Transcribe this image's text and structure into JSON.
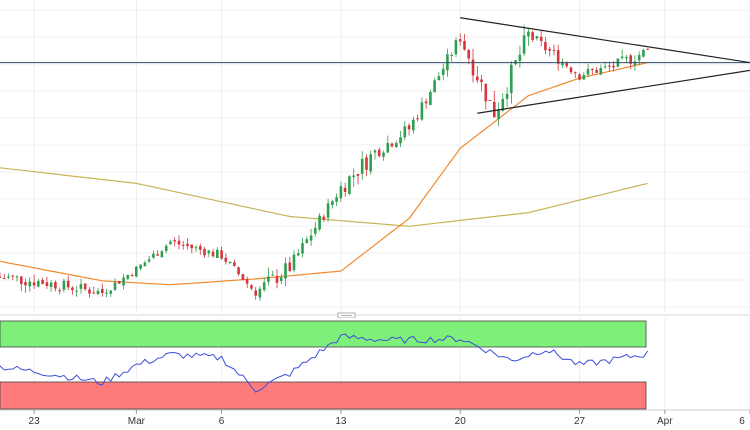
{
  "chart_data": {
    "type": "candlestick",
    "x_axis": {
      "labels": [
        {
          "label": "23",
          "date": "2023-02-23"
        },
        {
          "label": "Mar",
          "date": "2023-03-01"
        },
        {
          "label": "6",
          "date": "2023-03-06"
        },
        {
          "label": "13",
          "date": "2023-03-13"
        },
        {
          "label": "20",
          "date": "2023-03-20"
        },
        {
          "label": "27",
          "date": "2023-03-27"
        },
        {
          "label": "Apr",
          "date": "2023-04-01"
        },
        {
          "label": "6",
          "date": "2023-04-06"
        }
      ],
      "range": [
        "2023-02-21",
        "2023-04-06"
      ]
    },
    "price_panel": {
      "grid": true,
      "candles_up_color": "#2e9e4f",
      "candles_down_color": "#d5353c",
      "sma_fast_color": "#ef8a2f",
      "sma_slow_color": "#c9b458",
      "trendline_color": "#222222",
      "horizontal_line_color": "#2f4f6f",
      "candle_samples": [
        {
          "date": "2023-02-21",
          "o": 3.0,
          "h": 18.0,
          "l": -2.0,
          "c": 12.0
        },
        {
          "date": "2023-02-23",
          "o": 14.0,
          "h": 20.0,
          "l": 4.0,
          "c": 10.0
        },
        {
          "date": "2023-02-27",
          "o": 7.0,
          "h": 12.0,
          "l": 0.0,
          "c": 4.0
        },
        {
          "date": "2023-03-01",
          "o": 10.0,
          "h": 18.0,
          "l": 6.0,
          "c": 16.0
        },
        {
          "date": "2023-03-03",
          "o": 22.0,
          "h": 34.0,
          "l": 20.0,
          "c": 30.0
        },
        {
          "date": "2023-03-06",
          "o": 28.0,
          "h": 32.0,
          "l": 20.0,
          "c": 23.0
        },
        {
          "date": "2023-03-08",
          "o": 22.0,
          "h": 24.0,
          "l": 0.0,
          "c": 4.0
        },
        {
          "date": "2023-03-10",
          "o": 5.0,
          "h": 20.0,
          "l": 2.0,
          "c": 17.0
        },
        {
          "date": "2023-03-13",
          "o": 38.0,
          "h": 62.0,
          "l": 36.0,
          "c": 58.0
        },
        {
          "date": "2023-03-15",
          "o": 72.0,
          "h": 80.0,
          "l": 60.0,
          "c": 76.0
        },
        {
          "date": "2023-03-17",
          "o": 86.0,
          "h": 98.0,
          "l": 80.0,
          "c": 88.0
        },
        {
          "date": "2023-03-20",
          "o": 126.0,
          "h": 146.0,
          "l": 118.0,
          "c": 135.0
        },
        {
          "date": "2023-03-22",
          "o": 108.0,
          "h": 124.0,
          "l": 94.0,
          "c": 96.0
        },
        {
          "date": "2023-03-24",
          "o": 128.0,
          "h": 142.0,
          "l": 124.0,
          "c": 136.0
        },
        {
          "date": "2023-03-27",
          "o": 122.0,
          "h": 126.0,
          "l": 112.0,
          "c": 116.0
        },
        {
          "date": "2023-03-29",
          "o": 112.0,
          "h": 124.0,
          "l": 106.0,
          "c": 120.0
        },
        {
          "date": "2023-03-31",
          "o": 124.0,
          "h": 134.0,
          "l": 120.0,
          "c": 128.0
        }
      ],
      "sma_fast_samples": [
        {
          "date": "2023-02-21",
          "v": 20.0
        },
        {
          "date": "2023-02-27",
          "v": 10.0
        },
        {
          "date": "2023-03-03",
          "v": 8.0
        },
        {
          "date": "2023-03-08",
          "v": 11.0
        },
        {
          "date": "2023-03-13",
          "v": 15.0
        },
        {
          "date": "2023-03-17",
          "v": 42.0
        },
        {
          "date": "2023-03-20",
          "v": 78.0
        },
        {
          "date": "2023-03-24",
          "v": 105.0
        },
        {
          "date": "2023-03-27",
          "v": 114.0
        },
        {
          "date": "2023-03-31",
          "v": 122.0
        }
      ],
      "sma_slow_samples": [
        {
          "date": "2023-02-21",
          "v": 68.0
        },
        {
          "date": "2023-03-01",
          "v": 60.0
        },
        {
          "date": "2023-03-10",
          "v": 43.0
        },
        {
          "date": "2023-03-17",
          "v": 38.0
        },
        {
          "date": "2023-03-24",
          "v": 45.0
        },
        {
          "date": "2023-03-31",
          "v": 60.0
        }
      ],
      "horizontal_line": 122.0,
      "triangle_upper": [
        {
          "date": "2023-03-20",
          "v": 145.0
        },
        {
          "date": "2023-04-06",
          "v": 122.0
        }
      ],
      "triangle_lower": [
        {
          "date": "2023-03-21",
          "v": 96.0
        },
        {
          "date": "2023-04-06",
          "v": 118.0
        }
      ]
    },
    "oscillator_panel": {
      "overbought_color": "#7ef07a",
      "oversold_color": "#ff7b7b",
      "line_color": "#3b4fd8",
      "samples": [
        {
          "date": "2023-02-21",
          "v": 48
        },
        {
          "date": "2023-02-24",
          "v": 40
        },
        {
          "date": "2023-02-27",
          "v": 30
        },
        {
          "date": "2023-03-01",
          "v": 50
        },
        {
          "date": "2023-03-03",
          "v": 62
        },
        {
          "date": "2023-03-06",
          "v": 58
        },
        {
          "date": "2023-03-08",
          "v": 22
        },
        {
          "date": "2023-03-10",
          "v": 40
        },
        {
          "date": "2023-03-13",
          "v": 82
        },
        {
          "date": "2023-03-16",
          "v": 78
        },
        {
          "date": "2023-03-20",
          "v": 80
        },
        {
          "date": "2023-03-23",
          "v": 55
        },
        {
          "date": "2023-03-25",
          "v": 68
        },
        {
          "date": "2023-03-27",
          "v": 50
        },
        {
          "date": "2023-03-29",
          "v": 56
        },
        {
          "date": "2023-03-31",
          "v": 63
        }
      ]
    }
  }
}
